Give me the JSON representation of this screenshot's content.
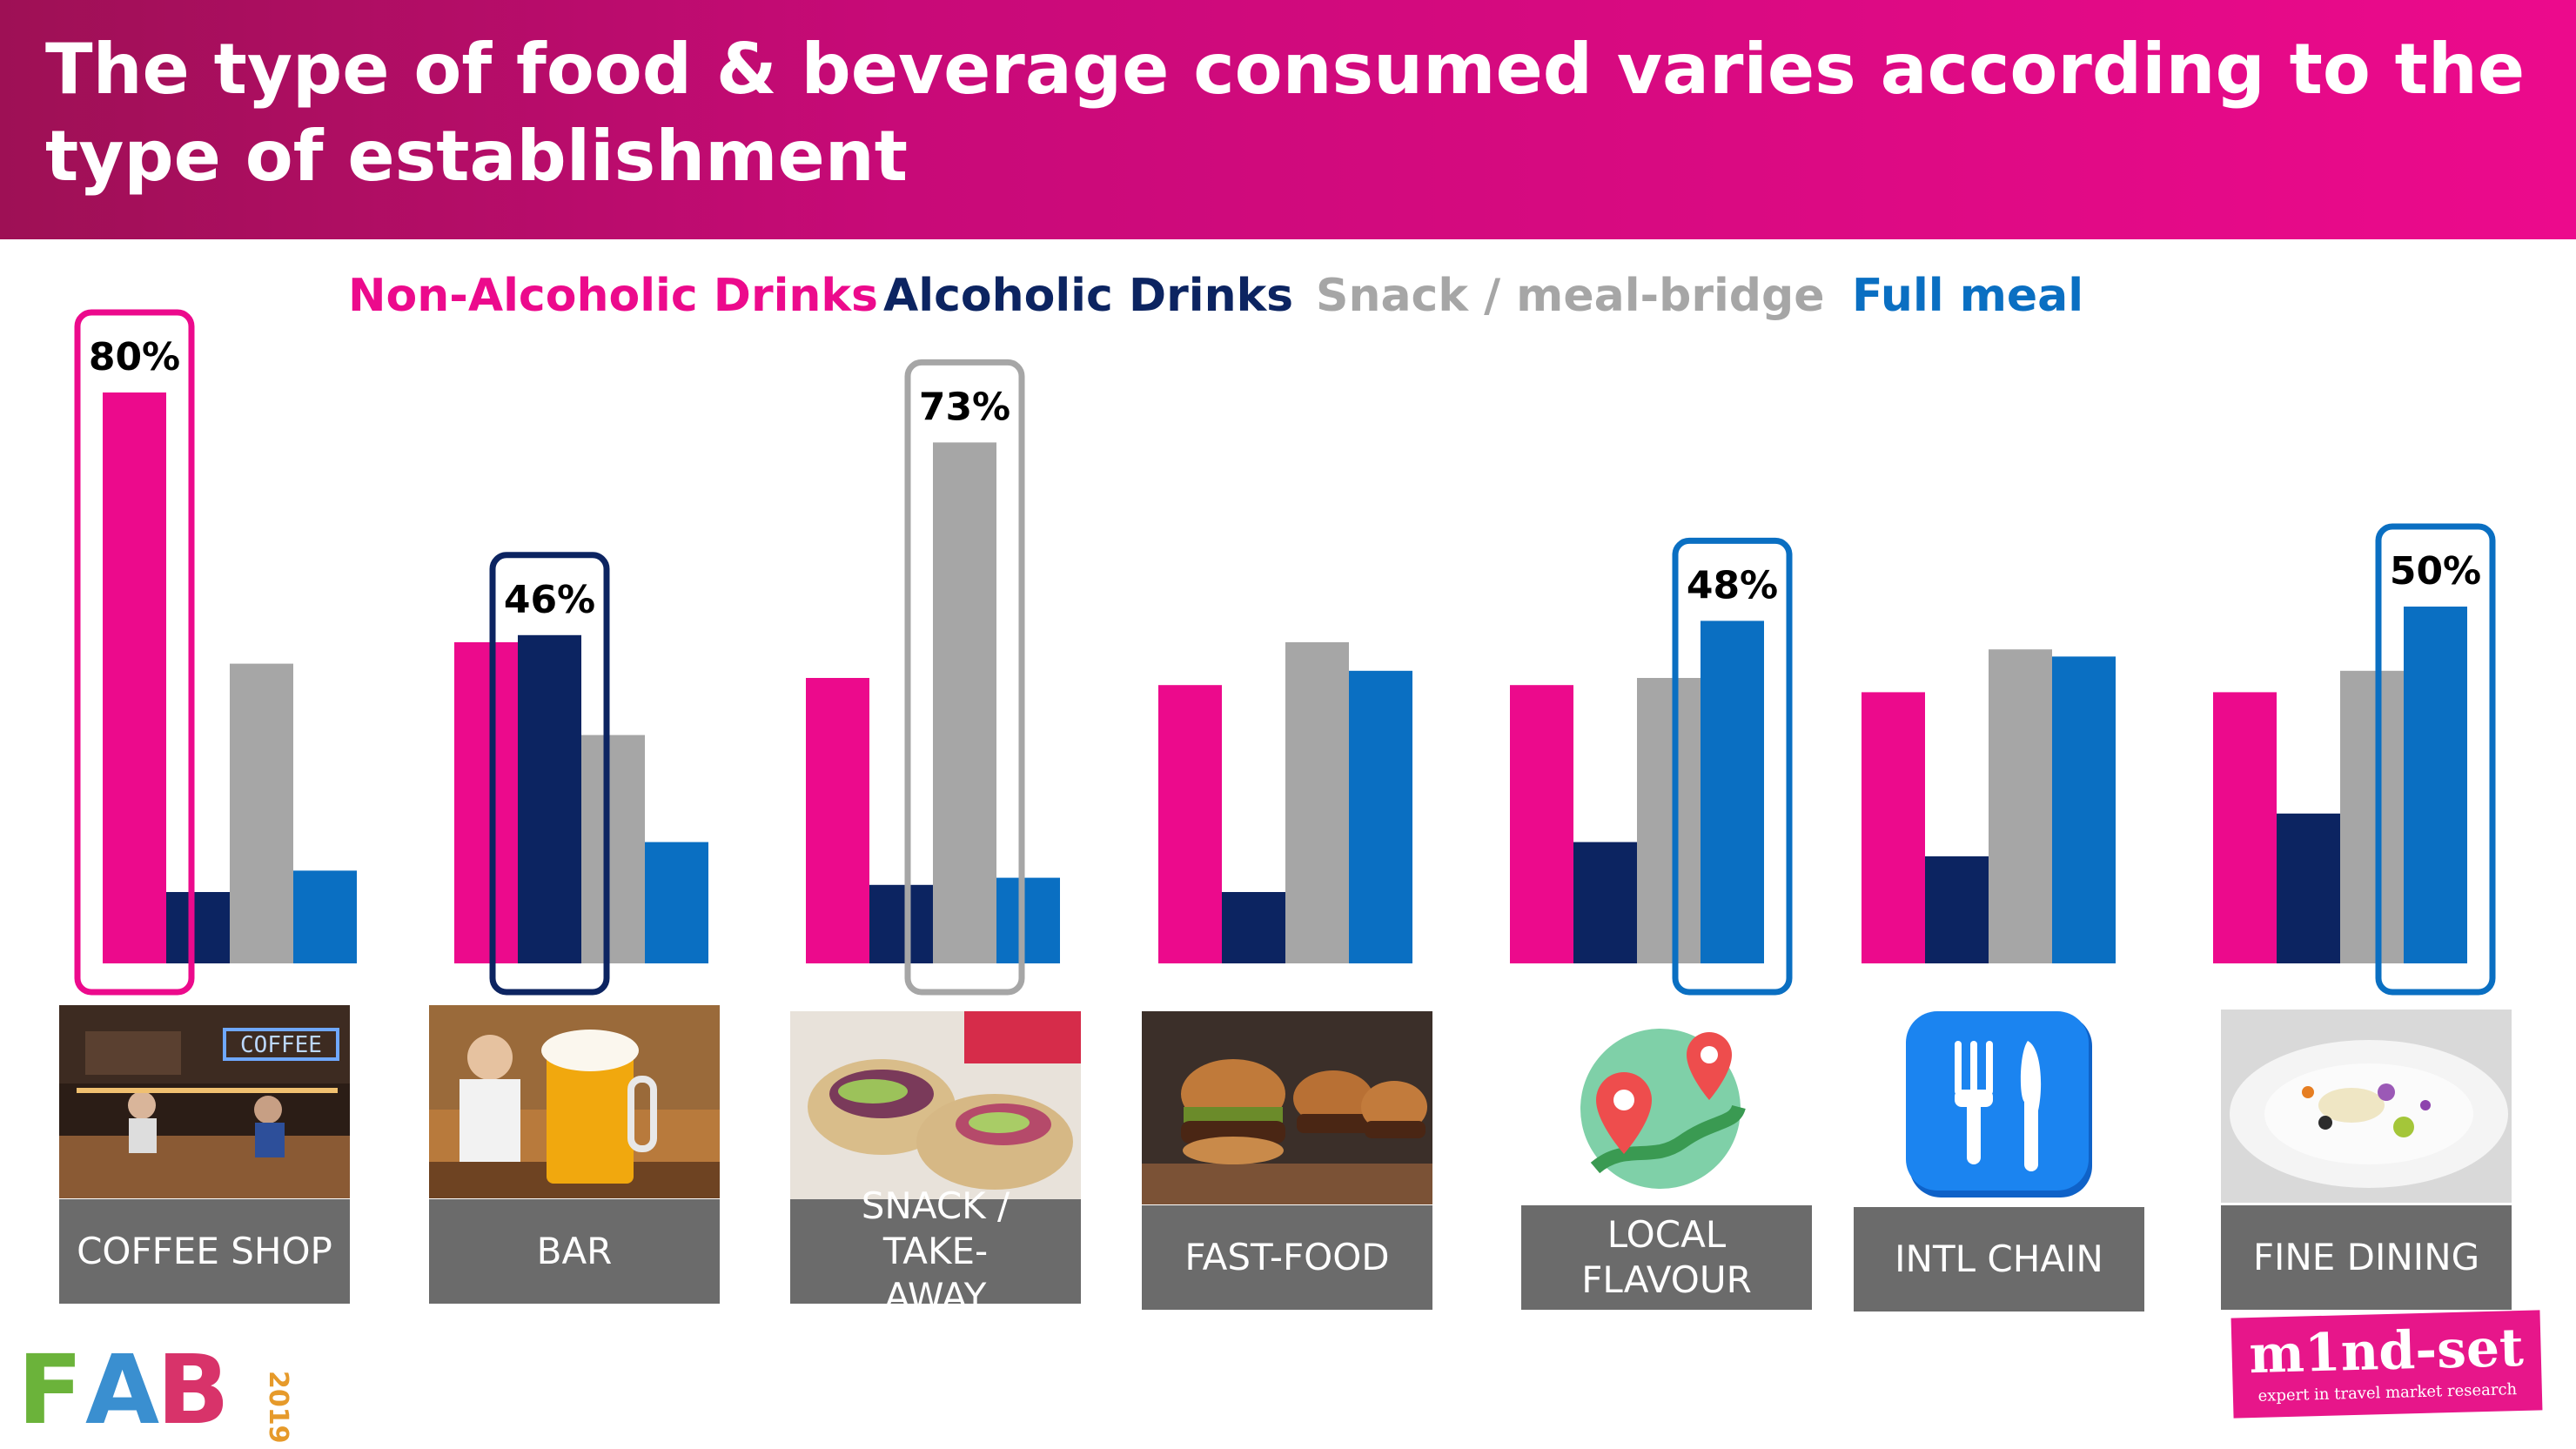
{
  "header": {
    "title": "The type of food & beverage consumed varies according to the type of establishment"
  },
  "colors": {
    "non_alcoholic": "#ec0a8c",
    "alcoholic": "#0c2461",
    "snack": "#a6a6a6",
    "full_meal": "#0a6fc2"
  },
  "chart_data": {
    "type": "bar",
    "title": "",
    "xlabel": "",
    "ylabel": "",
    "ylim": [
      0,
      100
    ],
    "grid": false,
    "legend_position": "top",
    "categories": [
      "COFFEE SHOP",
      "BAR",
      "SNACK / TAKE-AWAY",
      "FAST-FOOD",
      "LOCAL FLAVOUR",
      "INTL CHAIN",
      "FINE DINING"
    ],
    "series": [
      {
        "name": "Non-Alcoholic Drinks",
        "color": "#ec0a8c",
        "values": [
          80,
          45,
          40,
          39,
          39,
          38,
          38
        ]
      },
      {
        "name": "Alcoholic Drinks",
        "color": "#0c2461",
        "values": [
          10,
          46,
          11,
          10,
          17,
          15,
          21
        ]
      },
      {
        "name": "Snack / meal-bridge",
        "color": "#a6a6a6",
        "values": [
          42,
          32,
          73,
          45,
          40,
          44,
          41
        ]
      },
      {
        "name": "Full meal",
        "color": "#0a6fc2",
        "values": [
          13,
          17,
          12,
          41,
          48,
          43,
          50
        ]
      }
    ],
    "highlights": [
      {
        "category_index": 0,
        "series_index": 0,
        "label": "80%"
      },
      {
        "category_index": 1,
        "series_index": 1,
        "label": "46%"
      },
      {
        "category_index": 2,
        "series_index": 2,
        "label": "73%"
      },
      {
        "category_index": 4,
        "series_index": 3,
        "label": "48%"
      },
      {
        "category_index": 6,
        "series_index": 3,
        "label": "50%"
      }
    ]
  },
  "category_icons": [
    "coffee-shop-photo",
    "beer-glass-photo",
    "wrap-photo",
    "burgers-photo",
    "map-pin-icon",
    "fork-knife-icon",
    "fine-dining-photo"
  ],
  "logos": {
    "fab": {
      "letters": "FAB",
      "year": "2019"
    },
    "mindset": {
      "name": "m1nd-set",
      "tagline": "expert in travel market research"
    }
  }
}
